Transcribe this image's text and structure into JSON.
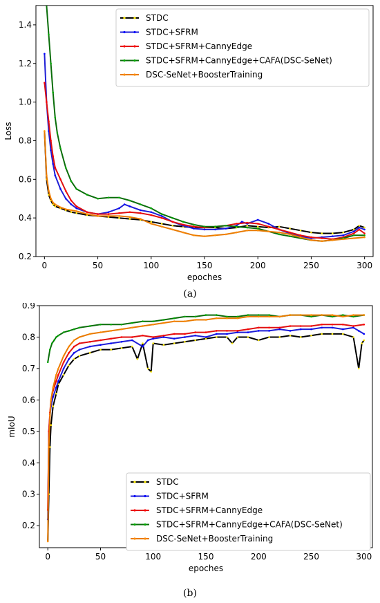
{
  "figure": {
    "captions": [
      "(a)",
      "(b)"
    ]
  },
  "chart_data": [
    {
      "type": "line",
      "title": "",
      "xlabel": "epoches",
      "ylabel": "Loss",
      "xlim": [
        -8,
        308
      ],
      "ylim": [
        0.2,
        1.5
      ],
      "xticks": [
        0,
        50,
        100,
        150,
        200,
        250,
        300
      ],
      "yticks": [
        0.2,
        0.4,
        0.6,
        0.8,
        1.0,
        1.2,
        1.4
      ],
      "ytick_labels": [
        "0.2",
        "0.4",
        "0.6",
        "0.8",
        "1.0",
        "1.2",
        "1.4"
      ],
      "grid": false,
      "legend_position": "top-right",
      "series": [
        {
          "name": "STDC",
          "color": "#000000",
          "marker_color": "#f5e400",
          "x": [
            0,
            2,
            4,
            6,
            8,
            10,
            15,
            20,
            25,
            30,
            40,
            50,
            60,
            70,
            80,
            90,
            100,
            110,
            120,
            130,
            140,
            150,
            160,
            170,
            180,
            190,
            200,
            210,
            220,
            230,
            240,
            250,
            260,
            270,
            280,
            290,
            295,
            300
          ],
          "y": [
            0.85,
            0.6,
            0.52,
            0.49,
            0.47,
            0.46,
            0.45,
            0.44,
            0.43,
            0.425,
            0.415,
            0.41,
            0.405,
            0.4,
            0.395,
            0.39,
            0.38,
            0.37,
            0.36,
            0.355,
            0.35,
            0.35,
            0.35,
            0.345,
            0.35,
            0.36,
            0.355,
            0.35,
            0.355,
            0.345,
            0.335,
            0.325,
            0.32,
            0.32,
            0.325,
            0.34,
            0.36,
            0.35
          ]
        },
        {
          "name": "STDC+SFRM",
          "color": "#1f1fd6",
          "marker_color": "#0000ff",
          "x": [
            0,
            2,
            4,
            6,
            8,
            10,
            15,
            20,
            25,
            30,
            40,
            50,
            60,
            70,
            75,
            80,
            90,
            100,
            110,
            120,
            130,
            140,
            150,
            160,
            170,
            180,
            185,
            190,
            200,
            210,
            220,
            230,
            240,
            250,
            260,
            270,
            280,
            290,
            295,
            300
          ],
          "y": [
            1.25,
            1.0,
            0.85,
            0.75,
            0.68,
            0.62,
            0.55,
            0.5,
            0.47,
            0.45,
            0.43,
            0.42,
            0.43,
            0.45,
            0.47,
            0.46,
            0.44,
            0.43,
            0.41,
            0.38,
            0.36,
            0.345,
            0.34,
            0.34,
            0.345,
            0.36,
            0.38,
            0.37,
            0.39,
            0.37,
            0.34,
            0.32,
            0.305,
            0.295,
            0.3,
            0.305,
            0.31,
            0.33,
            0.35,
            0.34
          ]
        },
        {
          "name": "STDC+SFRM+CannyEdge",
          "color": "#e01010",
          "marker_color": "#ff0000",
          "x": [
            0,
            2,
            4,
            6,
            8,
            10,
            15,
            20,
            25,
            30,
            40,
            50,
            60,
            70,
            80,
            90,
            100,
            110,
            120,
            130,
            140,
            150,
            160,
            170,
            180,
            190,
            200,
            210,
            220,
            230,
            240,
            250,
            260,
            270,
            280,
            290,
            295,
            300
          ],
          "y": [
            1.1,
            1.0,
            0.9,
            0.8,
            0.72,
            0.66,
            0.6,
            0.54,
            0.49,
            0.46,
            0.43,
            0.42,
            0.42,
            0.425,
            0.43,
            0.425,
            0.415,
            0.4,
            0.38,
            0.365,
            0.355,
            0.35,
            0.355,
            0.36,
            0.37,
            0.375,
            0.37,
            0.355,
            0.34,
            0.325,
            0.31,
            0.3,
            0.295,
            0.29,
            0.3,
            0.32,
            0.34,
            0.32
          ]
        },
        {
          "name": "STDC+SFRM+CannyEdge+CAFA(DSC-SeNet)",
          "color": "#0a6e0a",
          "marker_color": "#00aa00",
          "x": [
            0,
            2,
            4,
            6,
            8,
            10,
            12,
            15,
            20,
            25,
            30,
            40,
            50,
            60,
            70,
            80,
            90,
            100,
            110,
            120,
            130,
            140,
            150,
            160,
            170,
            180,
            190,
            200,
            210,
            220,
            230,
            240,
            250,
            260,
            270,
            280,
            290,
            300
          ],
          "y": [
            1.6,
            1.5,
            1.35,
            1.2,
            1.05,
            0.92,
            0.84,
            0.76,
            0.66,
            0.59,
            0.55,
            0.52,
            0.5,
            0.505,
            0.505,
            0.49,
            0.47,
            0.45,
            0.42,
            0.4,
            0.38,
            0.365,
            0.355,
            0.355,
            0.36,
            0.355,
            0.35,
            0.345,
            0.33,
            0.315,
            0.305,
            0.295,
            0.285,
            0.28,
            0.285,
            0.295,
            0.31,
            0.31
          ]
        },
        {
          "name": "DSC-SeNet+BoosterTraining",
          "color": "#e87a00",
          "marker_color": "#ff8c00",
          "x": [
            0,
            2,
            4,
            6,
            8,
            10,
            15,
            20,
            25,
            30,
            40,
            50,
            60,
            70,
            80,
            90,
            100,
            110,
            120,
            130,
            140,
            150,
            160,
            170,
            180,
            190,
            200,
            210,
            220,
            230,
            240,
            250,
            260,
            270,
            280,
            290,
            300
          ],
          "y": [
            0.85,
            0.62,
            0.54,
            0.5,
            0.48,
            0.47,
            0.455,
            0.445,
            0.44,
            0.435,
            0.42,
            0.41,
            0.41,
            0.41,
            0.405,
            0.395,
            0.37,
            0.355,
            0.34,
            0.325,
            0.31,
            0.305,
            0.31,
            0.315,
            0.325,
            0.335,
            0.335,
            0.33,
            0.325,
            0.315,
            0.3,
            0.285,
            0.28,
            0.285,
            0.29,
            0.295,
            0.3
          ]
        }
      ]
    },
    {
      "type": "line",
      "title": "",
      "xlabel": "epoches",
      "ylabel": "mIoU",
      "xlim": [
        -8,
        308
      ],
      "ylim": [
        0.13,
        0.9
      ],
      "xticks": [
        0,
        50,
        100,
        150,
        200,
        250,
        300
      ],
      "yticks": [
        0.2,
        0.3,
        0.4,
        0.5,
        0.6,
        0.7,
        0.8,
        0.9
      ],
      "ytick_labels": [
        "0.2",
        "0.3",
        "0.4",
        "0.5",
        "0.6",
        "0.7",
        "0.8",
        "0.9"
      ],
      "grid": false,
      "legend_position": "bottom-right",
      "series": [
        {
          "name": "STDC",
          "color": "#000000",
          "marker_color": "#f5e400",
          "x": [
            0,
            1,
            2,
            3,
            5,
            8,
            10,
            15,
            20,
            25,
            30,
            40,
            50,
            60,
            70,
            80,
            85,
            90,
            95,
            98,
            100,
            110,
            120,
            130,
            140,
            150,
            160,
            170,
            175,
            180,
            190,
            200,
            210,
            220,
            230,
            240,
            250,
            260,
            270,
            280,
            290,
            295,
            298,
            300
          ],
          "y": [
            0.15,
            0.3,
            0.45,
            0.52,
            0.58,
            0.62,
            0.65,
            0.68,
            0.71,
            0.73,
            0.74,
            0.75,
            0.76,
            0.76,
            0.765,
            0.77,
            0.73,
            0.78,
            0.7,
            0.69,
            0.78,
            0.775,
            0.78,
            0.785,
            0.79,
            0.795,
            0.8,
            0.8,
            0.78,
            0.8,
            0.8,
            0.79,
            0.8,
            0.8,
            0.805,
            0.8,
            0.805,
            0.81,
            0.81,
            0.81,
            0.8,
            0.7,
            0.78,
            0.79
          ]
        },
        {
          "name": "STDC+SFRM",
          "color": "#1f1fd6",
          "marker_color": "#0000ff",
          "x": [
            0,
            1,
            2,
            3,
            5,
            8,
            10,
            15,
            20,
            25,
            30,
            40,
            50,
            60,
            70,
            80,
            90,
            95,
            100,
            110,
            120,
            130,
            140,
            150,
            160,
            170,
            180,
            190,
            200,
            210,
            220,
            230,
            240,
            250,
            260,
            270,
            280,
            290,
            295,
            300
          ],
          "y": [
            0.22,
            0.5,
            0.55,
            0.58,
            0.61,
            0.64,
            0.66,
            0.7,
            0.73,
            0.75,
            0.76,
            0.77,
            0.775,
            0.78,
            0.785,
            0.79,
            0.77,
            0.79,
            0.795,
            0.8,
            0.795,
            0.8,
            0.805,
            0.8,
            0.81,
            0.81,
            0.815,
            0.815,
            0.82,
            0.82,
            0.825,
            0.82,
            0.825,
            0.825,
            0.83,
            0.83,
            0.825,
            0.83,
            0.82,
            0.81
          ]
        },
        {
          "name": "STDC+SFRM+CannyEdge",
          "color": "#e01010",
          "marker_color": "#ff0000",
          "x": [
            0,
            1,
            2,
            3,
            5,
            8,
            10,
            15,
            20,
            25,
            30,
            40,
            50,
            60,
            70,
            80,
            90,
            100,
            110,
            120,
            130,
            140,
            150,
            160,
            170,
            180,
            190,
            200,
            210,
            220,
            230,
            240,
            250,
            260,
            270,
            280,
            290,
            300
          ],
          "y": [
            0.25,
            0.5,
            0.56,
            0.6,
            0.63,
            0.66,
            0.68,
            0.72,
            0.75,
            0.77,
            0.78,
            0.785,
            0.79,
            0.795,
            0.8,
            0.8,
            0.805,
            0.8,
            0.805,
            0.81,
            0.81,
            0.815,
            0.815,
            0.82,
            0.82,
            0.82,
            0.825,
            0.83,
            0.83,
            0.83,
            0.835,
            0.835,
            0.835,
            0.84,
            0.84,
            0.84,
            0.835,
            0.84
          ]
        },
        {
          "name": "STDC+SFRM+CannyEdge+CAFA(DSC-SeNet)",
          "color": "#0a6e0a",
          "marker_color": "#00aa00",
          "x": [
            0,
            2,
            4,
            6,
            8,
            10,
            15,
            20,
            25,
            30,
            40,
            50,
            60,
            70,
            80,
            90,
            100,
            110,
            120,
            130,
            140,
            150,
            160,
            170,
            180,
            190,
            200,
            210,
            220,
            230,
            240,
            250,
            260,
            270,
            280,
            290,
            300
          ],
          "y": [
            0.72,
            0.76,
            0.78,
            0.79,
            0.8,
            0.805,
            0.815,
            0.82,
            0.825,
            0.83,
            0.835,
            0.84,
            0.84,
            0.84,
            0.845,
            0.85,
            0.85,
            0.855,
            0.86,
            0.865,
            0.865,
            0.87,
            0.87,
            0.865,
            0.865,
            0.87,
            0.87,
            0.87,
            0.865,
            0.87,
            0.87,
            0.865,
            0.87,
            0.865,
            0.87,
            0.865,
            0.87
          ]
        },
        {
          "name": "DSC-SeNet+BoosterTraining",
          "color": "#e87a00",
          "marker_color": "#ff8c00",
          "x": [
            0,
            1,
            2,
            3,
            5,
            8,
            10,
            15,
            20,
            25,
            30,
            40,
            50,
            60,
            70,
            80,
            90,
            100,
            110,
            120,
            130,
            140,
            150,
            160,
            170,
            180,
            190,
            200,
            210,
            220,
            230,
            240,
            250,
            260,
            270,
            280,
            290,
            300
          ],
          "y": [
            0.15,
            0.45,
            0.55,
            0.6,
            0.64,
            0.68,
            0.7,
            0.74,
            0.77,
            0.79,
            0.8,
            0.81,
            0.815,
            0.82,
            0.825,
            0.83,
            0.835,
            0.84,
            0.845,
            0.85,
            0.85,
            0.855,
            0.855,
            0.86,
            0.86,
            0.86,
            0.865,
            0.865,
            0.865,
            0.865,
            0.87,
            0.87,
            0.87,
            0.87,
            0.87,
            0.865,
            0.87,
            0.87
          ]
        }
      ]
    }
  ]
}
